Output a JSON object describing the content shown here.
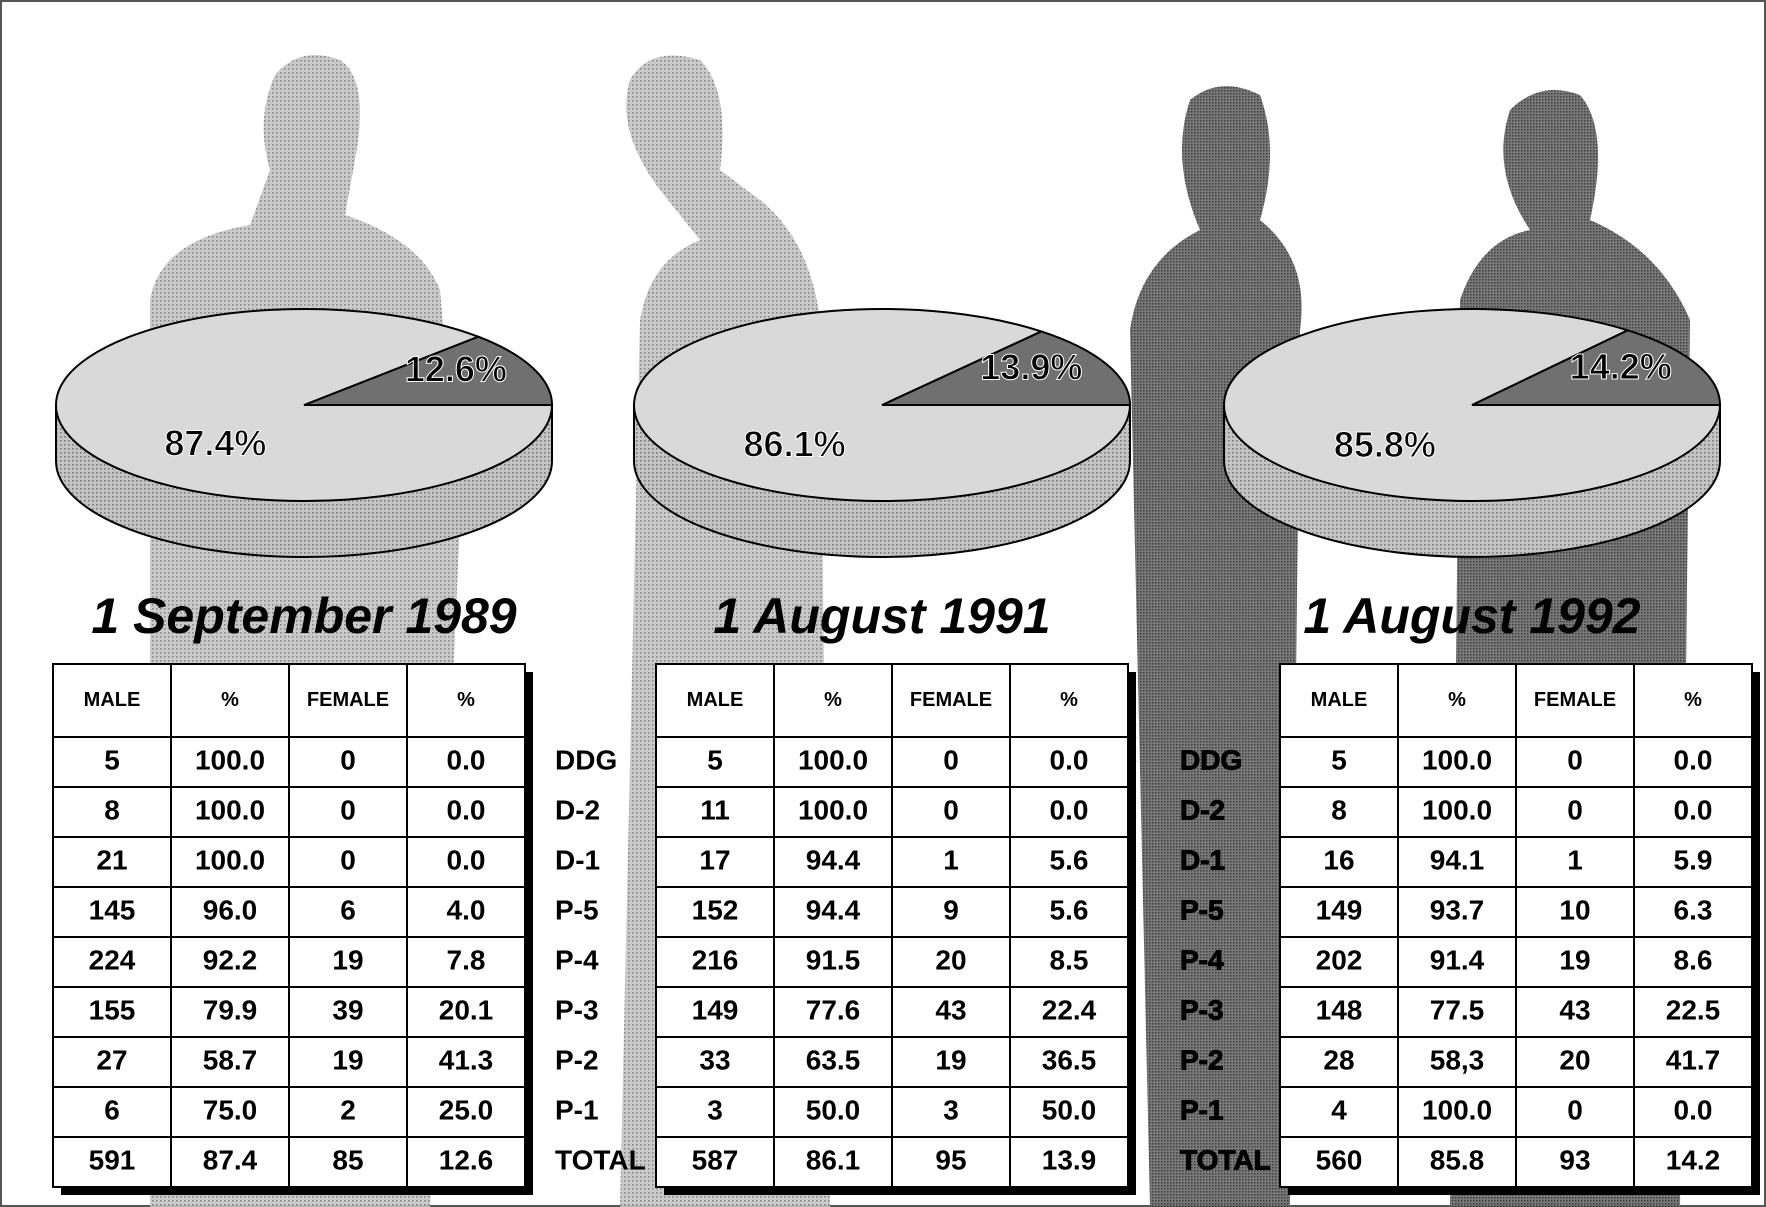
{
  "chart_data": [
    {
      "type": "pie",
      "title": "1 September 1989",
      "values": [
        87.4,
        12.6
      ],
      "value_labels": [
        "87.4%",
        "12.6%"
      ],
      "colors": [
        "#d9d9d9",
        "#707070"
      ]
    },
    {
      "type": "pie",
      "title": "1 August 1991",
      "values": [
        86.1,
        13.9
      ],
      "value_labels": [
        "86.1%",
        "13.9%"
      ],
      "colors": [
        "#d9d9d9",
        "#707070"
      ]
    },
    {
      "type": "pie",
      "title": "1 August 1992",
      "values": [
        85.8,
        14.2
      ],
      "value_labels": [
        "85.8%",
        "14.2%"
      ],
      "colors": [
        "#d9d9d9",
        "#707070"
      ]
    }
  ],
  "grades": [
    "DDG",
    "D-2",
    "D-1",
    "P-5",
    "P-4",
    "P-3",
    "P-2",
    "P-1",
    "TOTAL"
  ],
  "tables": [
    {
      "header": [
        "MALE",
        "%",
        "FEMALE",
        "%"
      ],
      "rows": [
        [
          "5",
          "100.0",
          "0",
          "0.0"
        ],
        [
          "8",
          "100.0",
          "0",
          "0.0"
        ],
        [
          "21",
          "100.0",
          "0",
          "0.0"
        ],
        [
          "145",
          "96.0",
          "6",
          "4.0"
        ],
        [
          "224",
          "92.2",
          "19",
          "7.8"
        ],
        [
          "155",
          "79.9",
          "39",
          "20.1"
        ],
        [
          "27",
          "58.7",
          "19",
          "41.3"
        ],
        [
          "6",
          "75.0",
          "2",
          "25.0"
        ],
        [
          "591",
          "87.4",
          "85",
          "12.6"
        ]
      ]
    },
    {
      "header": [
        "MALE",
        "%",
        "FEMALE",
        "%"
      ],
      "rows": [
        [
          "5",
          "100.0",
          "0",
          "0.0"
        ],
        [
          "11",
          "100.0",
          "0",
          "0.0"
        ],
        [
          "17",
          "94.4",
          "1",
          "5.6"
        ],
        [
          "152",
          "94.4",
          "9",
          "5.6"
        ],
        [
          "216",
          "91.5",
          "20",
          "8.5"
        ],
        [
          "149",
          "77.6",
          "43",
          "22.4"
        ],
        [
          "33",
          "63.5",
          "19",
          "36.5"
        ],
        [
          "3",
          "50.0",
          "3",
          "50.0"
        ],
        [
          "587",
          "86.1",
          "95",
          "13.9"
        ]
      ]
    },
    {
      "header": [
        "MALE",
        "%",
        "FEMALE",
        "%"
      ],
      "rows": [
        [
          "5",
          "100.0",
          "0",
          "0.0"
        ],
        [
          "8",
          "100.0",
          "0",
          "0.0"
        ],
        [
          "16",
          "94.1",
          "1",
          "5.9"
        ],
        [
          "149",
          "93.7",
          "10",
          "6.3"
        ],
        [
          "202",
          "91.4",
          "19",
          "8.6"
        ],
        [
          "148",
          "77.5",
          "43",
          "22.5"
        ],
        [
          "28",
          "58,3",
          "20",
          "41.7"
        ],
        [
          "4",
          "100.0",
          "0",
          "0.0"
        ],
        [
          "560",
          "85.8",
          "93",
          "14.2"
        ]
      ]
    }
  ]
}
